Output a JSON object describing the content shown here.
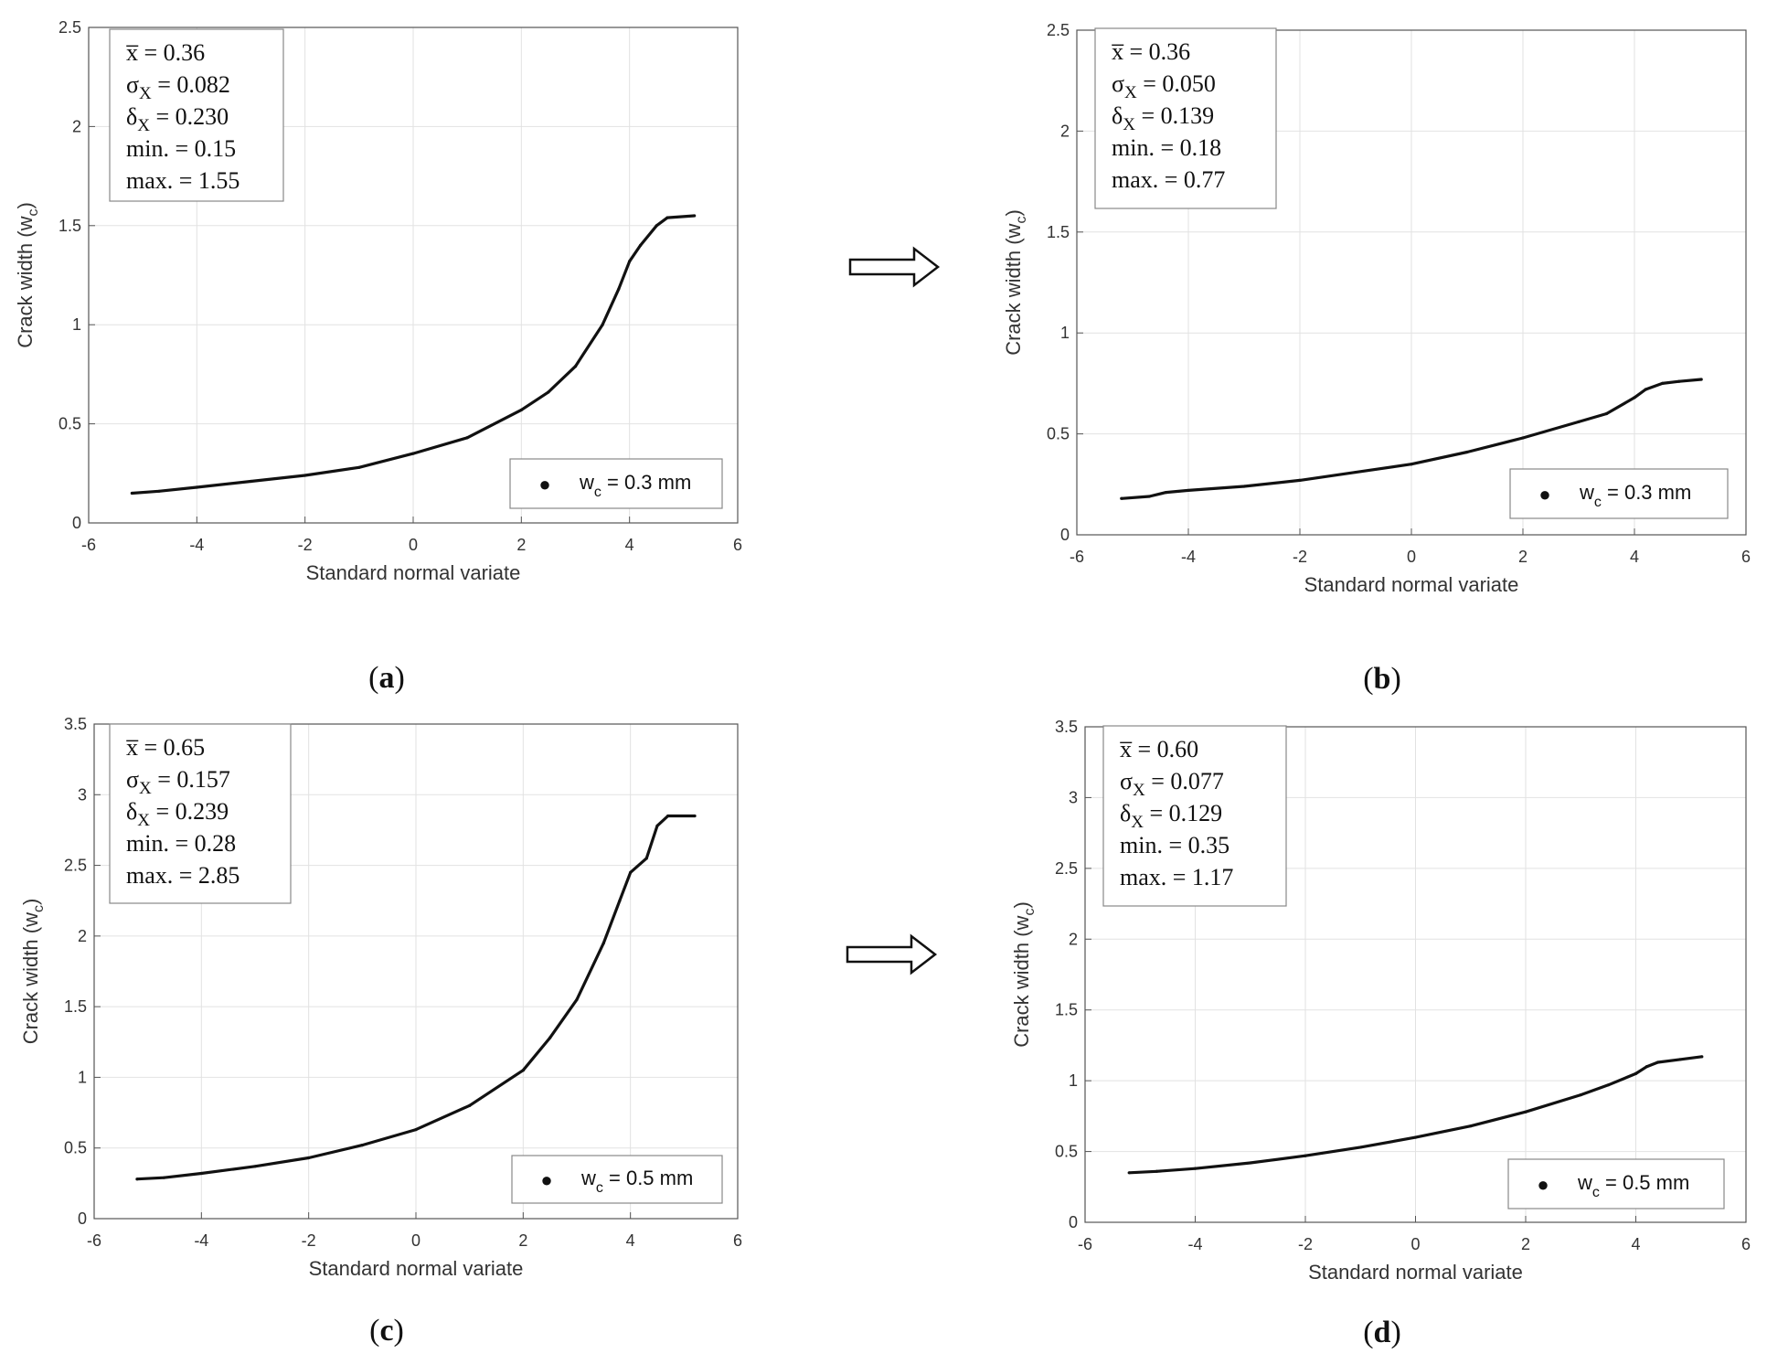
{
  "chart_data": [
    {
      "id": "a",
      "type": "scatter",
      "caption": "(a)",
      "xlabel": "Standard normal variate",
      "ylabel": "Crack width (w",
      "ylabel_sub": "c",
      "ylabel_end": ")",
      "xlim": [
        -6,
        6
      ],
      "ylim": [
        0,
        2.5
      ],
      "xticks": [
        -6,
        -4,
        -2,
        0,
        2,
        4,
        6
      ],
      "yticks": [
        0,
        0.5,
        1,
        1.5,
        2,
        2.5
      ],
      "grid": true,
      "stats": [
        {
          "sym": "x̅",
          "sub": "",
          "value": " = 0.36"
        },
        {
          "sym": "σ",
          "sub": "X",
          "value": " = 0.082"
        },
        {
          "sym": "δ",
          "sub": "X",
          "value": " = 0.230"
        },
        {
          "sym": "min.",
          "sub": "",
          "value": " = 0.15"
        },
        {
          "sym": "max.",
          "sub": "",
          "value": " = 1.55"
        }
      ],
      "legend": {
        "marker": "●",
        "text": "w",
        "sub": "c",
        "text_end": " = 0.3 mm",
        "position": "bottom-right"
      },
      "curve": {
        "x": [
          -5.2,
          -4.7,
          -4,
          -3,
          -2,
          -1,
          0,
          1,
          2,
          2.5,
          3,
          3.5,
          3.8,
          4.0,
          4.2,
          4.5,
          4.7,
          5.2
        ],
        "y": [
          0.15,
          0.16,
          0.18,
          0.21,
          0.24,
          0.28,
          0.35,
          0.43,
          0.57,
          0.66,
          0.79,
          1.0,
          1.18,
          1.32,
          1.4,
          1.5,
          1.54,
          1.55
        ]
      }
    },
    {
      "id": "b",
      "type": "scatter",
      "caption": "(b)",
      "xlabel": "Standard normal variate",
      "ylabel": "Crack width (w",
      "ylabel_sub": "c",
      "ylabel_end": ")",
      "xlim": [
        -6,
        6
      ],
      "ylim": [
        0,
        2.5
      ],
      "xticks": [
        -6,
        -4,
        -2,
        0,
        2,
        4,
        6
      ],
      "yticks": [
        0,
        0.5,
        1,
        1.5,
        2,
        2.5
      ],
      "grid": true,
      "stats": [
        {
          "sym": "x̅",
          "sub": "",
          "value": " = 0.36"
        },
        {
          "sym": "σ",
          "sub": "X",
          "value": " = 0.050"
        },
        {
          "sym": "δ",
          "sub": "X",
          "value": " = 0.139"
        },
        {
          "sym": "min.",
          "sub": "",
          "value": " = 0.18"
        },
        {
          "sym": "max.",
          "sub": "",
          "value": " = 0.77"
        }
      ],
      "legend": {
        "marker": "●",
        "text": "w",
        "sub": "c",
        "text_end": " = 0.3 mm",
        "position": "bottom-right"
      },
      "curve": {
        "x": [
          -5.2,
          -4.7,
          -4.4,
          -4,
          -3,
          -2,
          -1,
          0,
          1,
          2,
          3,
          3.5,
          4,
          4.2,
          4.5,
          4.8,
          5.2
        ],
        "y": [
          0.18,
          0.19,
          0.21,
          0.22,
          0.24,
          0.27,
          0.31,
          0.35,
          0.41,
          0.48,
          0.56,
          0.6,
          0.68,
          0.72,
          0.75,
          0.76,
          0.77
        ]
      }
    },
    {
      "id": "c",
      "type": "scatter",
      "caption": "(c)",
      "xlabel": "Standard normal variate",
      "ylabel": "Crack width (w",
      "ylabel_sub": "c",
      "ylabel_end": ")",
      "xlim": [
        -6,
        6
      ],
      "ylim": [
        0,
        3.5
      ],
      "xticks": [
        -6,
        -4,
        -2,
        0,
        2,
        4,
        6
      ],
      "yticks": [
        0,
        0.5,
        1,
        1.5,
        2,
        2.5,
        3,
        3.5
      ],
      "grid": true,
      "stats": [
        {
          "sym": "x̅",
          "sub": "",
          "value": " = 0.65"
        },
        {
          "sym": "σ",
          "sub": "X",
          "value": " = 0.157"
        },
        {
          "sym": "δ",
          "sub": "X",
          "value": " = 0.239"
        },
        {
          "sym": "min.",
          "sub": "",
          "value": " = 0.28"
        },
        {
          "sym": "max.",
          "sub": "",
          "value": " = 2.85"
        }
      ],
      "legend": {
        "marker": "●",
        "text": "w",
        "sub": "c",
        "text_end": " = 0.5 mm",
        "position": "bottom-right"
      },
      "curve": {
        "x": [
          -5.2,
          -4.7,
          -4,
          -3,
          -2,
          -1,
          0,
          1,
          2,
          2.5,
          3,
          3.5,
          3.8,
          4.0,
          4.3,
          4.5,
          4.7,
          5.2
        ],
        "y": [
          0.28,
          0.29,
          0.32,
          0.37,
          0.43,
          0.52,
          0.63,
          0.8,
          1.05,
          1.28,
          1.55,
          1.95,
          2.25,
          2.45,
          2.55,
          2.78,
          2.85,
          2.85
        ]
      }
    },
    {
      "id": "d",
      "type": "scatter",
      "caption": "(d)",
      "xlabel": "Standard normal variate",
      "ylabel": "Crack width (w",
      "ylabel_sub": "c",
      "ylabel_end": ")",
      "xlim": [
        -6,
        6
      ],
      "ylim": [
        0,
        3.5
      ],
      "xticks": [
        -6,
        -4,
        -2,
        0,
        2,
        4,
        6
      ],
      "yticks": [
        0,
        0.5,
        1,
        1.5,
        2,
        2.5,
        3,
        3.5
      ],
      "grid": true,
      "stats": [
        {
          "sym": "x̅",
          "sub": "",
          "value": " = 0.60"
        },
        {
          "sym": "σ",
          "sub": "X",
          "value": " = 0.077"
        },
        {
          "sym": "δ",
          "sub": "X",
          "value": " = 0.129"
        },
        {
          "sym": "min.",
          "sub": "",
          "value": " = 0.35"
        },
        {
          "sym": "max.",
          "sub": "",
          "value": " = 1.17"
        }
      ],
      "legend": {
        "marker": "●",
        "text": "w",
        "sub": "c",
        "text_end": " = 0.5 mm",
        "position": "bottom-right"
      },
      "curve": {
        "x": [
          -5.2,
          -4.7,
          -4,
          -3,
          -2,
          -1,
          0,
          1,
          2,
          3,
          3.5,
          4.0,
          4.2,
          4.4,
          4.8,
          5.2
        ],
        "y": [
          0.35,
          0.36,
          0.38,
          0.42,
          0.47,
          0.53,
          0.6,
          0.68,
          0.78,
          0.9,
          0.97,
          1.05,
          1.1,
          1.13,
          1.15,
          1.17
        ]
      }
    }
  ]
}
